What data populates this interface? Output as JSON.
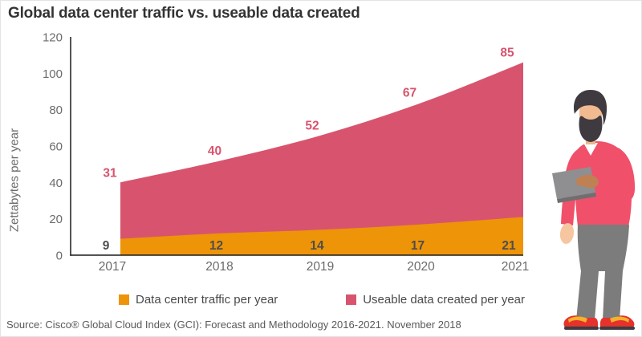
{
  "title": "Global data center traffic vs. useable data created",
  "source": "Source: Cisco® Global Cloud Index (GCI): Forecast and Methodology 2016-2021. November 2018",
  "chart_data": {
    "type": "area",
    "stacked": true,
    "title": "Global data center traffic vs. useable data created",
    "categories": [
      "2017",
      "2018",
      "2019",
      "2020",
      "2021"
    ],
    "series": [
      {
        "name": "Data center traffic per year",
        "color": "#ee9408",
        "label_color": "#4d4d4d",
        "values": [
          9,
          12,
          14,
          17,
          21
        ]
      },
      {
        "name": "Useable data created per year",
        "color": "#d8546e",
        "label_color": "#d8546e",
        "values": [
          31,
          40,
          52,
          67,
          85
        ]
      }
    ],
    "xlabel": "",
    "ylabel": "Zettabytes per year",
    "ylim": [
      0,
      120
    ],
    "yticks": [
      0,
      20,
      40,
      60,
      80,
      100,
      120
    ],
    "grid": false,
    "legend_position": "bottom",
    "axis_color": "#1c1c1c",
    "tick_label_color": "#6b6b6b"
  },
  "legend": {
    "items": [
      {
        "label": "Data center traffic per year"
      },
      {
        "label": "Useable data created per year"
      }
    ]
  },
  "illustration": {
    "description": "man-with-tablet",
    "sweater_color": "#f0506a",
    "hair_color": "#3e3a40",
    "skin_color": "#f2ba90",
    "pants_color": "#7d7c7c",
    "shoe_color": "#e5322c",
    "shoe_stripe_color": "#f2b22c",
    "tablet_color": "#8f8f91"
  }
}
